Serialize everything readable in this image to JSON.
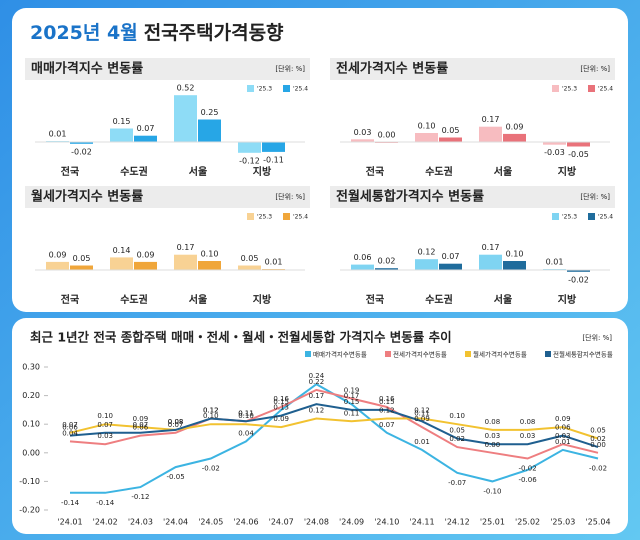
{
  "header": {
    "highlight": "2025년 4월",
    "title": "전국주택가격동향"
  },
  "chart_data": [
    {
      "type": "bar",
      "title": "매매가격지수 변동률",
      "unit": "[단위: %]",
      "categories": [
        "전국",
        "수도권",
        "서울",
        "지방"
      ],
      "series": [
        {
          "name": "'25.3",
          "color": "#8edcf6",
          "values": [
            0.01,
            0.15,
            0.52,
            -0.12
          ],
          "value_labels": [
            "0.01",
            "0.15",
            "0.52",
            "-0.12"
          ]
        },
        {
          "name": "'25.4",
          "color": "#27a6e6",
          "values": [
            -0.02,
            0.07,
            0.25,
            -0.11
          ],
          "value_labels": [
            "-0.02",
            "0.07",
            "0.25",
            "-0.11"
          ]
        }
      ]
    },
    {
      "type": "bar",
      "title": "전세가격지수 변동률",
      "unit": "[단위: %]",
      "categories": [
        "전국",
        "수도권",
        "서울",
        "지방"
      ],
      "series": [
        {
          "name": "'25.3",
          "color": "#f7bcc0",
          "values": [
            0.03,
            0.1,
            0.17,
            -0.03
          ],
          "value_labels": [
            "0.03",
            "0.10",
            "0.17",
            "-0.03"
          ]
        },
        {
          "name": "'25.4",
          "color": "#e9727a",
          "values": [
            0,
            0.05,
            0.09,
            -0.05
          ],
          "value_labels": [
            "0.00",
            "0.05",
            "0.09",
            "-0.05"
          ]
        }
      ]
    },
    {
      "type": "bar",
      "title": "월세가격지수 변동률",
      "unit": "[단위: %]",
      "categories": [
        "전국",
        "수도권",
        "서울",
        "지방"
      ],
      "series": [
        {
          "name": "'25.3",
          "color": "#f8d294",
          "values": [
            0.09,
            0.14,
            0.17,
            0.05
          ],
          "value_labels": [
            "0.09",
            "0.14",
            "0.17",
            "0.05"
          ]
        },
        {
          "name": "'25.4",
          "color": "#f0a63a",
          "values": [
            0.05,
            0.09,
            0.1,
            0.01
          ],
          "value_labels": [
            "0.05",
            "0.09",
            "0.10",
            "0.01"
          ]
        }
      ]
    },
    {
      "type": "bar",
      "title": "전월세통합가격지수 변동률",
      "unit": "[단위: %]",
      "categories": [
        "전국",
        "수도권",
        "서울",
        "지방"
      ],
      "series": [
        {
          "name": "'25.3",
          "color": "#7fd4f2",
          "values": [
            0.06,
            0.12,
            0.17,
            0.01
          ],
          "value_labels": [
            "0.06",
            "0.12",
            "0.17",
            "0.01"
          ]
        },
        {
          "name": "'25.4",
          "color": "#1f6c9c",
          "values": [
            0.02,
            0.07,
            0.1,
            -0.02
          ],
          "value_labels": [
            "0.02",
            "0.07",
            "0.10",
            "-0.02"
          ]
        }
      ]
    },
    {
      "type": "line",
      "title": "최근 1년간 전국 종합주택 매매・전세・월세・전월세통합 가격지수 변동률 추이",
      "unit": "[단위: %]",
      "x": [
        "'24.01",
        "'24.02",
        "'24.03",
        "'24.04",
        "'24.05",
        "'24.06",
        "'24.07",
        "'24.08",
        "'24.09",
        "'24.10",
        "'24.11",
        "'24.12",
        "'25.01",
        "'25.02",
        "'25.03",
        "'25.04"
      ],
      "ylim": [
        -0.2,
        0.3
      ],
      "yticks": [
        {
          "value": -0.2,
          "label": "-0.20"
        },
        {
          "value": -0.1,
          "label": "-0.10"
        },
        {
          "value": 0,
          "label": "0.00"
        },
        {
          "value": 0.1,
          "label": "0.10"
        },
        {
          "value": 0.2,
          "label": "0.20"
        },
        {
          "value": 0.3,
          "label": "0.30"
        }
      ],
      "series": [
        {
          "name": "매매가격지수변동률",
          "color": "#3cb4e2",
          "values": [
            -0.14,
            -0.14,
            -0.12,
            -0.05,
            -0.02,
            0.04,
            0.15,
            0.24,
            0.17,
            0.07,
            0.01,
            -0.07,
            -0.1,
            -0.06,
            0.01,
            -0.02
          ],
          "value_labels": [
            "-0.14",
            "-0.14",
            "-0.12",
            "-0.05",
            "-0.02",
            "0.04",
            "0.15",
            "0.24",
            "0.17",
            "0.07",
            "0.01",
            "-0.07",
            "-0.10",
            "-0.06",
            "0.01",
            "-0.02"
          ]
        },
        {
          "name": "전세가격지수변동률",
          "color": "#ee7e80",
          "values": [
            0.04,
            0.03,
            0.06,
            0.07,
            0.12,
            0.11,
            0.16,
            0.22,
            0.19,
            0.16,
            0.09,
            0.02,
            0,
            -0.02,
            0.03,
            0
          ],
          "value_labels": [
            "0.04",
            "0.03",
            "0.06",
            "0.07",
            "0.12",
            "0.11",
            "0.16",
            "0.22",
            "0.19",
            "0.16",
            "0.09",
            "0.02",
            "0.00",
            "-0.02",
            "0.03",
            "0.00"
          ]
        },
        {
          "name": "월세가격지수변동률",
          "color": "#f2c230",
          "values": [
            0.07,
            0.1,
            0.09,
            0.08,
            0.1,
            0.1,
            0.09,
            0.12,
            0.11,
            0.12,
            0.12,
            0.1,
            0.08,
            0.08,
            0.09,
            0.05
          ],
          "value_labels": [
            "0.07",
            "0.10",
            "0.09",
            "0.08",
            "0.10",
            "0.10",
            "0.09",
            "0.12",
            "0.11",
            "0.12",
            "0.12",
            "0.10",
            "0.08",
            "0.08",
            "0.09",
            "0.05"
          ]
        },
        {
          "name": "전월세통합지수변동률",
          "color": "#1f5f8f",
          "values": [
            0.06,
            0.07,
            0.07,
            0.08,
            0.12,
            0.11,
            0.13,
            0.17,
            0.15,
            0.15,
            0.11,
            0.05,
            0.03,
            0.03,
            0.06,
            0.02
          ],
          "value_labels": [
            "0.06",
            "0.07",
            "0.07",
            "0.08",
            "0.12",
            "0.11",
            "0.13",
            "0.17",
            "0.15",
            "0.15",
            "0.11",
            "0.05",
            "0.03",
            "0.03",
            "0.06",
            "0.02"
          ]
        }
      ]
    }
  ]
}
